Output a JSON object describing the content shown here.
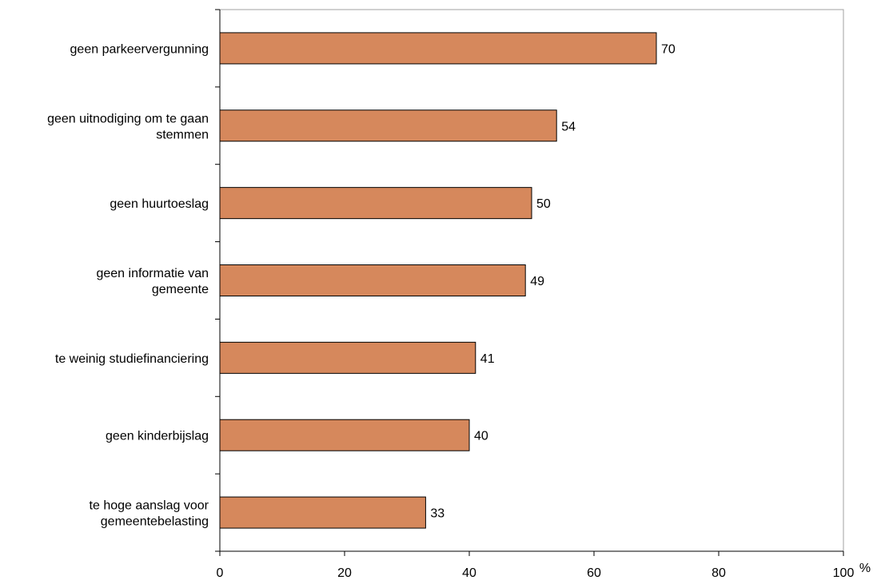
{
  "chart_data": {
    "type": "bar",
    "orientation": "horizontal",
    "categories": [
      [
        "geen parkeervergunning"
      ],
      [
        "geen uitnodiging om te gaan",
        "stemmen"
      ],
      [
        "geen huurtoeslag"
      ],
      [
        "geen informatie van",
        "gemeente"
      ],
      [
        "te weinig studiefinanciering"
      ],
      [
        "geen kinderbijslag"
      ],
      [
        "te hoge aanslag voor",
        "gemeentebelasting"
      ]
    ],
    "values": [
      70,
      54,
      50,
      49,
      41,
      40,
      33
    ],
    "value_labels": [
      "70",
      "54",
      "50",
      "49",
      "41",
      "40",
      "33"
    ],
    "x_ticks": [
      "0",
      "20",
      "40",
      "60",
      "80",
      "100"
    ],
    "xlim": [
      0,
      100
    ],
    "unit": "%",
    "bar_color": "#d6885c",
    "grid": false,
    "legend": "none"
  }
}
